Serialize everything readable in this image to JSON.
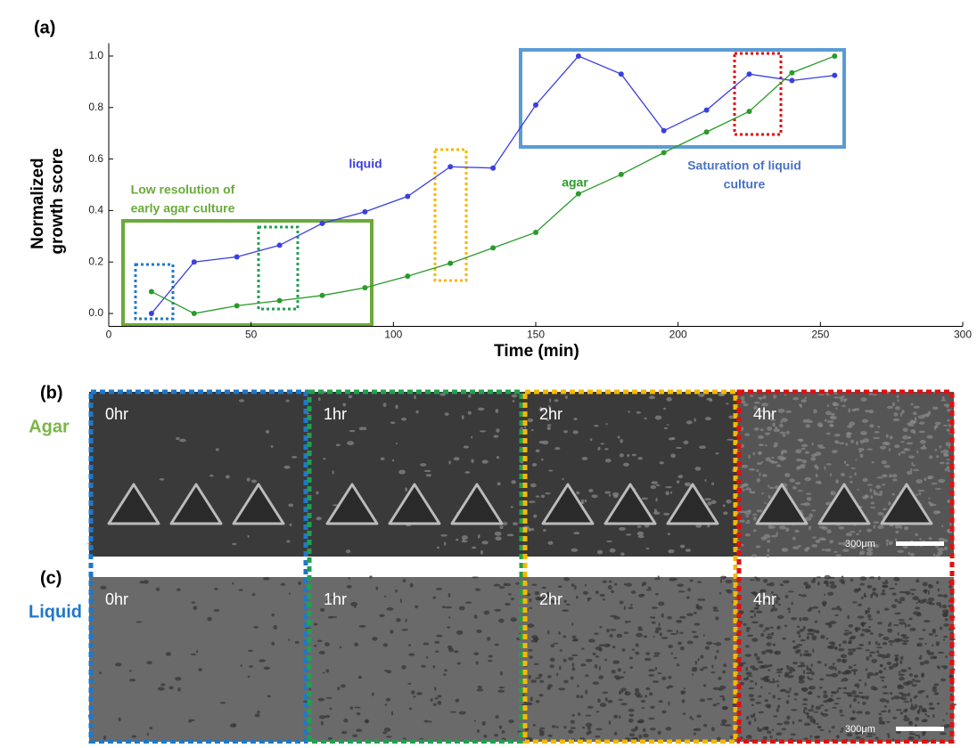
{
  "chart_data": {
    "type": "line",
    "panel_label": "(a)",
    "xlabel": "Time (min)",
    "ylabel": [
      "Normalized",
      "growth score"
    ],
    "xlim": [
      0,
      300
    ],
    "ylim": [
      -0.05,
      1.05
    ],
    "xticks": [
      0,
      50,
      100,
      150,
      200,
      250,
      300
    ],
    "yticks": [
      {
        "value": 0,
        "label": "0.0"
      },
      0.2,
      0.4,
      0.6,
      0.8,
      {
        "value": 1,
        "label": "1.0"
      }
    ],
    "x": [
      15,
      30,
      45,
      60,
      75,
      90,
      105,
      120,
      135,
      150,
      165,
      180,
      195,
      210,
      225,
      240,
      255
    ],
    "series": [
      {
        "name": "liquid",
        "color": "#3a3fe0",
        "values": [
          0.0,
          0.2,
          0.22,
          0.265,
          0.35,
          0.395,
          0.455,
          0.57,
          0.565,
          0.81,
          1.0,
          0.93,
          0.71,
          0.79,
          0.93,
          0.905,
          0.925
        ]
      },
      {
        "name": "agar",
        "color": "#2a9a2a",
        "values": [
          0.085,
          0.0,
          0.03,
          0.05,
          0.07,
          0.1,
          0.145,
          0.195,
          0.255,
          0.315,
          0.465,
          0.54,
          0.625,
          0.705,
          0.785,
          0.935,
          1.0
        ]
      }
    ],
    "annotations": [
      {
        "lines": [
          "Low resolution of",
          "early agar culture"
        ],
        "color": "#6aaa3a"
      },
      {
        "lines": [
          "Saturation of liquid",
          "culture"
        ],
        "color": "#4a72c4"
      }
    ]
  },
  "panels": [
    {
      "label": "(b)",
      "row": "Agar",
      "row_color": "#7ab648"
    },
    {
      "label": "(c)",
      "row": "Liquid",
      "row_color": "#1f78c8"
    }
  ],
  "time_labels": [
    "0hr",
    "1hr",
    "2hr",
    "4hr"
  ],
  "scale_bar": "300μm"
}
